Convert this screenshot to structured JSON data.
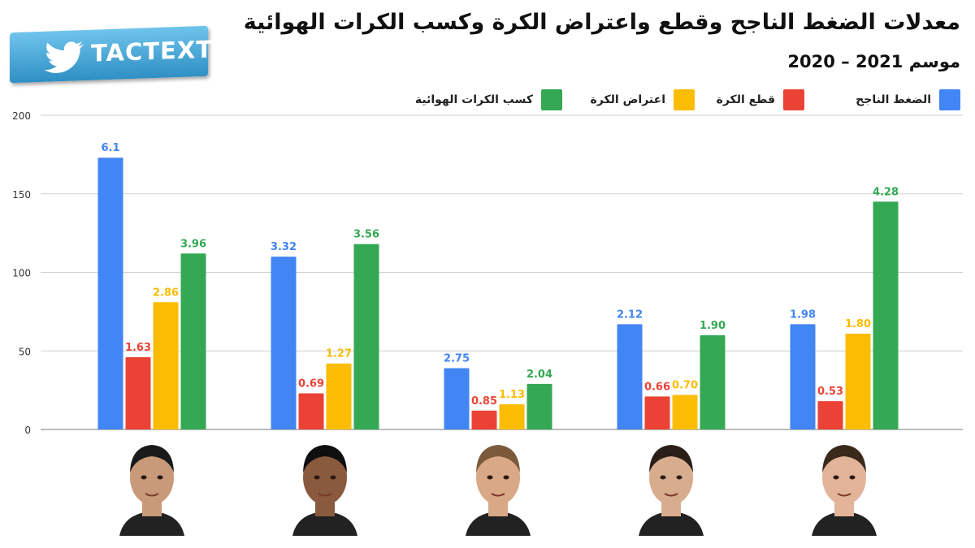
{
  "header": {
    "title": "معدلات الضغط الناجح وقطع واعتراض الكرة وكسب الكرات الهوائية",
    "subtitle": "موسم 2021 – 2020"
  },
  "logo": {
    "text": "TACTEXT",
    "icon": "twitter-bird-icon",
    "color": "#3aa0d8"
  },
  "chart_data": {
    "type": "bar",
    "categories": [
      "",
      "",
      "",
      "",
      ""
    ],
    "ylim": [
      0,
      200
    ],
    "yticks": [
      0,
      50,
      100,
      150,
      200
    ],
    "grid": true,
    "legend_position": "top",
    "series": [
      {
        "name": "الضغط الناجح",
        "color": "#4285f4",
        "values": [
          173,
          110,
          39,
          67,
          67
        ],
        "labels": [
          "6.1",
          "3.32",
          "2.75",
          "2.12",
          "1.98"
        ]
      },
      {
        "name": "قطع الكرة",
        "color": "#ea4335",
        "values": [
          46,
          23,
          12,
          21,
          18
        ],
        "labels": [
          "1.63",
          "0.69",
          "0.85",
          "0.66",
          "0.53"
        ]
      },
      {
        "name": "اعتراض الكرة",
        "color": "#fbbc04",
        "values": [
          81,
          42,
          16,
          22,
          61
        ],
        "labels": [
          "2.86",
          "1.27",
          "1.13",
          "0.70",
          "1.80"
        ]
      },
      {
        "name": "كسب الكرات الهوائية",
        "color": "#34a853",
        "values": [
          112,
          118,
          29,
          60,
          145
        ],
        "labels": [
          "3.96",
          "3.56",
          "2.04",
          "1.90",
          "4.28"
        ]
      }
    ]
  },
  "players": [
    {
      "icon": "player-photo-icon"
    },
    {
      "icon": "player-photo-icon"
    },
    {
      "icon": "player-photo-icon"
    },
    {
      "icon": "player-photo-icon"
    },
    {
      "icon": "player-photo-icon"
    }
  ]
}
